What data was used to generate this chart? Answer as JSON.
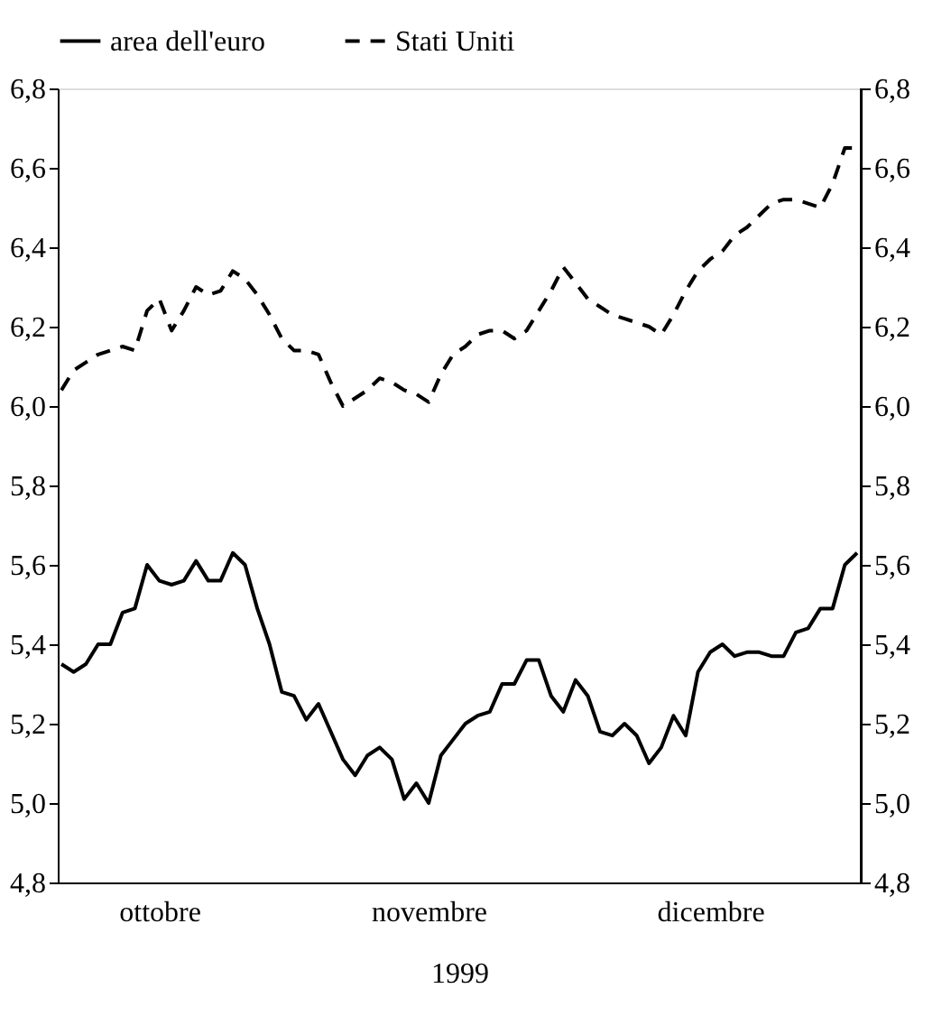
{
  "chart_data": {
    "type": "line",
    "xlabel": "1999",
    "categories": [
      null,
      null,
      null,
      null,
      null,
      null,
      null,
      null,
      "ottobre",
      null,
      null,
      null,
      null,
      null,
      null,
      null,
      null,
      null,
      null,
      null,
      null,
      null,
      null,
      null,
      null,
      null,
      null,
      null,
      null,
      null,
      "novembre",
      null,
      null,
      null,
      null,
      null,
      null,
      null,
      null,
      null,
      null,
      null,
      null,
      null,
      null,
      null,
      null,
      null,
      null,
      null,
      null,
      null,
      null,
      "dicembre",
      null,
      null,
      null,
      null,
      null,
      null,
      null,
      null,
      null,
      null,
      null,
      null
    ],
    "series": [
      {
        "name": "area dell'euro",
        "color": "#000000",
        "line_style": "solid",
        "values": [
          5.35,
          5.33,
          5.35,
          5.4,
          5.4,
          5.48,
          5.49,
          5.6,
          5.56,
          5.55,
          5.56,
          5.61,
          5.56,
          5.56,
          5.63,
          5.6,
          5.49,
          5.4,
          5.28,
          5.27,
          5.21,
          5.25,
          5.18,
          5.11,
          5.07,
          5.12,
          5.14,
          5.11,
          5.01,
          5.05,
          5.0,
          5.12,
          5.16,
          5.2,
          5.22,
          5.23,
          5.3,
          5.3,
          5.36,
          5.36,
          5.27,
          5.23,
          5.31,
          5.27,
          5.18,
          5.17,
          5.2,
          5.17,
          5.1,
          5.14,
          5.22,
          5.17,
          5.33,
          5.38,
          5.4,
          5.37,
          5.38,
          5.38,
          5.37,
          5.37,
          5.43,
          5.44,
          5.49,
          5.49,
          5.6,
          5.63
        ]
      },
      {
        "name": "Stati Uniti",
        "color": "#000000",
        "line_style": "dashed",
        "values": [
          6.04,
          6.09,
          6.11,
          6.13,
          6.14,
          6.15,
          6.14,
          6.24,
          6.27,
          6.19,
          6.24,
          6.3,
          6.28,
          6.29,
          6.34,
          6.32,
          6.28,
          6.23,
          6.17,
          6.14,
          6.14,
          6.13,
          6.06,
          6.0,
          6.02,
          6.04,
          6.07,
          6.06,
          6.04,
          6.03,
          6.01,
          6.08,
          6.13,
          6.15,
          6.18,
          6.19,
          6.19,
          6.17,
          6.19,
          6.24,
          6.29,
          6.35,
          6.31,
          6.27,
          6.25,
          6.23,
          6.22,
          6.21,
          6.2,
          6.18,
          6.23,
          6.29,
          6.34,
          6.37,
          6.39,
          6.43,
          6.45,
          6.48,
          6.51,
          6.52,
          6.52,
          6.51,
          6.5,
          6.56,
          6.65,
          6.65
        ]
      }
    ],
    "ylim": [
      4.8,
      6.8
    ],
    "yticks": [
      {
        "value": 4.8,
        "label": "4,8"
      },
      {
        "value": 5.0,
        "label": "5,0"
      },
      {
        "value": 5.2,
        "label": "5,2"
      },
      {
        "value": 5.4,
        "label": "5,4"
      },
      {
        "value": 5.6,
        "label": "5,6"
      },
      {
        "value": 5.8,
        "label": "5,8"
      },
      {
        "value": 6.0,
        "label": "6,0"
      },
      {
        "value": 6.2,
        "label": "6,2"
      },
      {
        "value": 6.4,
        "label": "6,4"
      },
      {
        "value": 6.6,
        "label": "6,6"
      },
      {
        "value": 6.8,
        "label": "6,8"
      }
    ],
    "y2lim": [
      4.8,
      6.8
    ],
    "y2ticks": [
      {
        "value": 4.8,
        "label": "4,8"
      },
      {
        "value": 5.0,
        "label": "5,0"
      },
      {
        "value": 5.2,
        "label": "5,2"
      },
      {
        "value": 5.4,
        "label": "5,4"
      },
      {
        "value": 5.6,
        "label": "5,6"
      },
      {
        "value": 5.8,
        "label": "5,8"
      },
      {
        "value": 6.0,
        "label": "6,0"
      },
      {
        "value": 6.2,
        "label": "6,2"
      },
      {
        "value": 6.4,
        "label": "6,4"
      },
      {
        "value": 6.6,
        "label": "6,6"
      },
      {
        "value": 6.8,
        "label": "6,8"
      }
    ],
    "grid": false,
    "legend": "top"
  }
}
